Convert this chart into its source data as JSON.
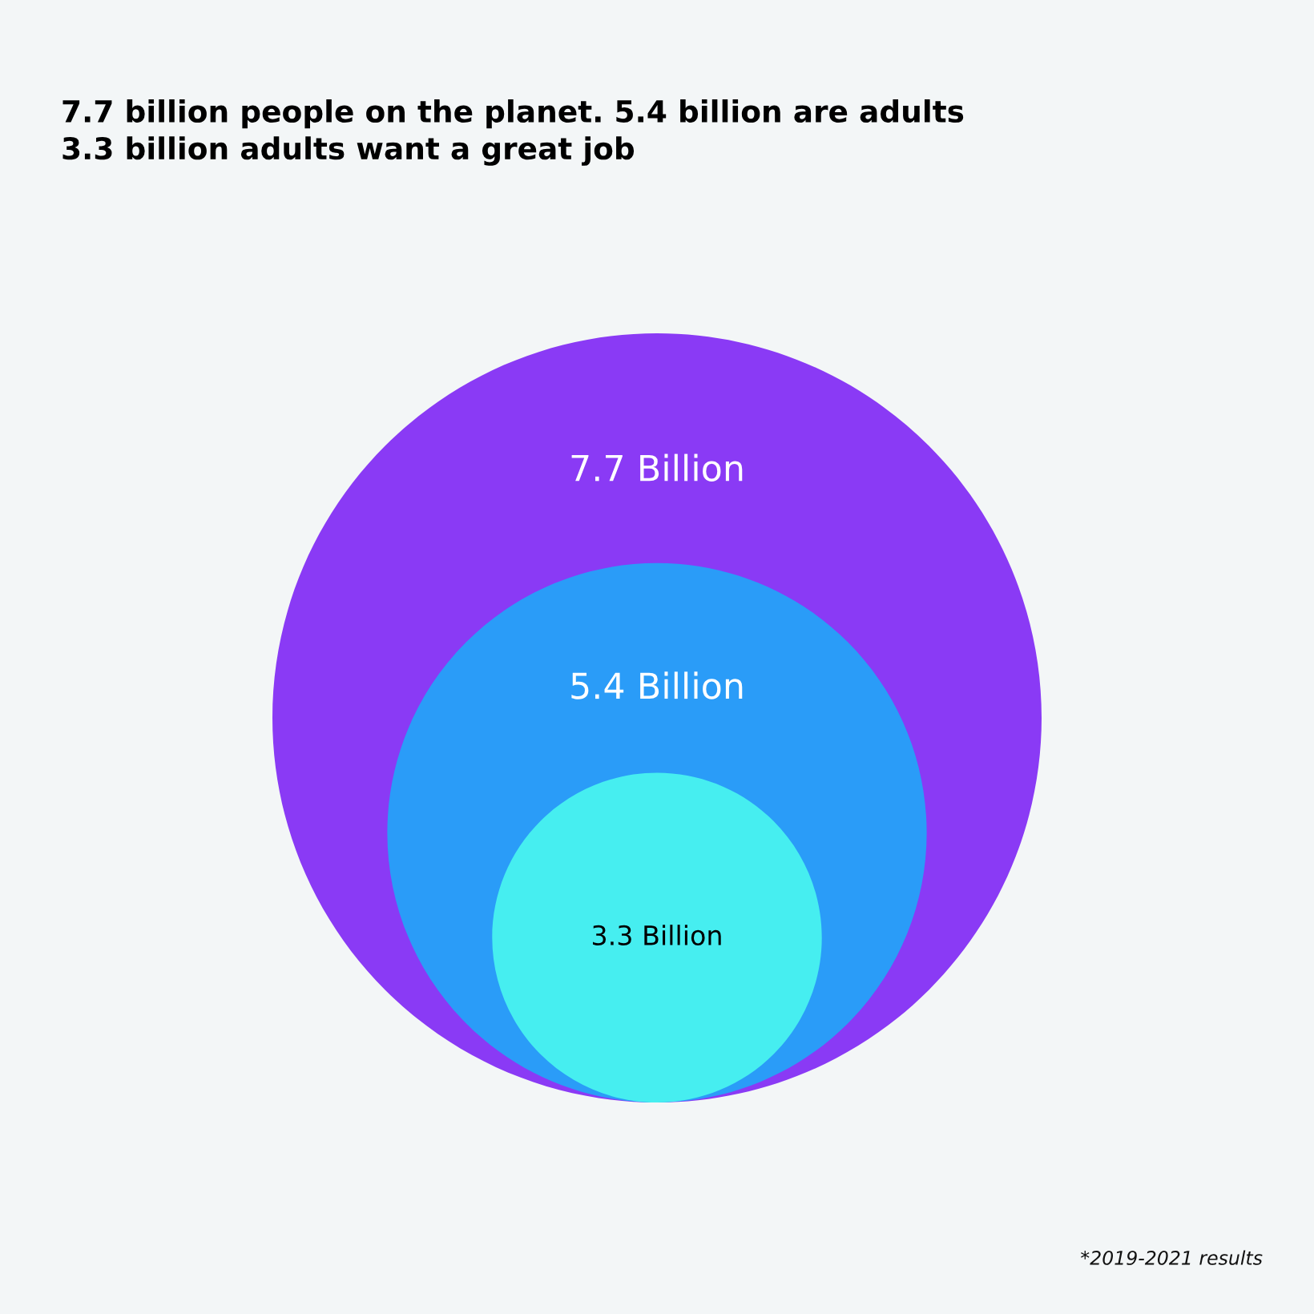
{
  "chart_data": {
    "type": "other",
    "title": "7.7 billion people on the planet. 5.4 billion are adults\n3.3 billion adults want a great job",
    "values": [
      7.7,
      5.4,
      3.3
    ],
    "value_labels": [
      "7.7 Billion",
      "5.4 Billion",
      "3.3 Billion"
    ],
    "colors": [
      "#8a3af5",
      "#2a9cf8",
      "#46eef0"
    ],
    "annotations": [
      "*2019-2021 results"
    ]
  }
}
